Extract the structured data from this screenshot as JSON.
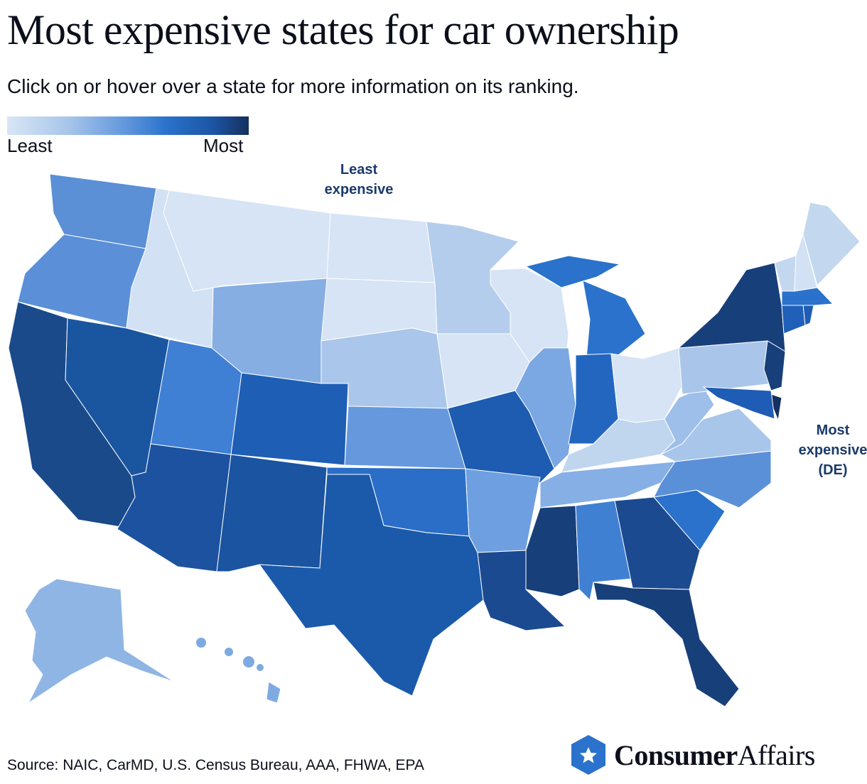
{
  "title": "Most expensive states for car ownership",
  "subtitle": "Click on or hover over a state for more information on its ranking.",
  "legend": {
    "low_label": "Least",
    "high_label": "Most",
    "low_color": "#d8e6f6",
    "high_color": "#15305e"
  },
  "annotations": {
    "least": "Least expensive",
    "most_line1": "Most",
    "most_line2": "expensive",
    "most_line3": "(DE)"
  },
  "source": "Source: NAIC, CarMD, U.S. Census Bureau, AAA, FHWA, EPA",
  "logo": {
    "bold": "Consumer",
    "light": "Affairs",
    "color": "#2a72cc"
  },
  "state_fills": {
    "WA": "#5b8fd6",
    "OR": "#5b90d8",
    "CA": "#1a4a8a",
    "ID": "#d2e1f4",
    "NV": "#1a56a0",
    "MT": "#d6e4f5",
    "WY": "#86aee3",
    "UT": "#3f7fd4",
    "AZ": "#1c52a0",
    "CO": "#1e5fb5",
    "NM": "#1b54a0",
    "ND": "#d6e4f5",
    "SD": "#d6e4f5",
    "NE": "#aac6ea",
    "KS": "#6698dd",
    "OK": "#2a6ec8",
    "TX": "#1b5aaa",
    "MN": "#b5cdec",
    "IA": "#d6e4f5",
    "MO": "#1d5cb0",
    "AR": "#6e9fe0",
    "LA": "#1b4a90",
    "WI": "#d6e4f5",
    "IL": "#7ba7e2",
    "MI": "#2a72cc",
    "MIU": "#2a72cc",
    "IN": "#2266c0",
    "OH": "#d6e4f5",
    "KY": "#c0d6ef",
    "TN": "#86afe5",
    "MS": "#173f7a",
    "AL": "#3f80d3",
    "GA": "#1b4a90",
    "FL": "#173f7a",
    "SC": "#2a72cc",
    "NC": "#5a90d8",
    "VA": "#a8c6ea",
    "WV": "#9dbfe9",
    "PA": "#a9c6ea",
    "NY": "#173f7a",
    "NJ": "#173f7a",
    "DE": "#15305e",
    "MD": "#1e5cb5",
    "CT": "#2060b8",
    "RI": "#1e5cb5",
    "MA": "#2a72cc",
    "VT": "#c3d7ef",
    "NH": "#d2e1f4",
    "ME": "#c3d7ef",
    "AK": "#8fb5e5",
    "HI": "#7eaae2"
  }
}
